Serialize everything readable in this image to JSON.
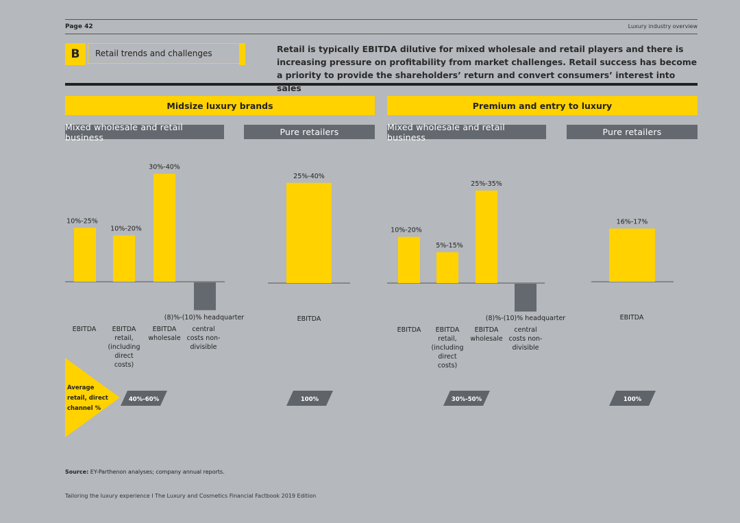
{
  "page": {
    "number": "Page 42",
    "section": "Luxury industry overview",
    "footer": "Tailoring the luxury experience I The Luxury and Cosmetics Financial Factbook 2019 Edition",
    "source_label": "Source:",
    "source_text": " EY-Parthenon analyses; company annual reports."
  },
  "section": {
    "letter": "B",
    "title": "Retail trends and challenges"
  },
  "headline": "Retail is typically EBITDA dilutive for mixed wholesale and retail players and there is increasing pressure on profitability from market challenges. Retail success has become a priority to provide the shareholders’ return and convert consumers’ interest into sales",
  "groups": [
    {
      "title": "Midsize luxury brands",
      "left_sub": "Mixed wholesale and retail business",
      "right_sub": "Pure retailers"
    },
    {
      "title": "Premium and entry to luxury",
      "left_sub": "Mixed wholesale and retail business",
      "right_sub": "Pure retailers"
    }
  ],
  "avg_label": "Average retail, direct channel %",
  "colors": {
    "positive": "#ffd200",
    "negative": "#646970",
    "background": "#b5b8bc",
    "pill": "#5f646a"
  },
  "chart_data": [
    {
      "type": "bar",
      "group": "Midsize luxury brands",
      "panel": "Mixed wholesale and retail business",
      "categories": [
        "EBITDA",
        "EBITDA retail, (including direct costs)",
        "EBITDA wholesale",
        "headquarter central costs non-divisible"
      ],
      "labels": [
        "10%-25%",
        "10%-20%",
        "30%-40%",
        "(8)%-(10)%"
      ],
      "values": [
        17.5,
        15,
        35,
        -9
      ],
      "avg_retail_direct_channel": "40%-60%"
    },
    {
      "type": "bar",
      "group": "Midsize luxury brands",
      "panel": "Pure retailers",
      "categories": [
        "EBITDA"
      ],
      "labels": [
        "25%-40%"
      ],
      "values": [
        32.5
      ],
      "avg_retail_direct_channel": "100%"
    },
    {
      "type": "bar",
      "group": "Premium and entry to luxury",
      "panel": "Mixed wholesale and retail business",
      "categories": [
        "EBITDA",
        "EBITDA retail, (including direct costs)",
        "EBITDA wholesale",
        "headquarter central costs non-divisible"
      ],
      "labels": [
        "10%-20%",
        "5%-15%",
        "25%-35%",
        "(8)%-(10)%"
      ],
      "values": [
        15,
        10,
        30,
        -9
      ],
      "avg_retail_direct_channel": "30%-50%"
    },
    {
      "type": "bar",
      "group": "Premium and entry to luxury",
      "panel": "Pure retailers",
      "categories": [
        "EBITDA"
      ],
      "labels": [
        "16%-17%"
      ],
      "values": [
        16.5
      ],
      "avg_retail_direct_channel": "100%"
    }
  ]
}
